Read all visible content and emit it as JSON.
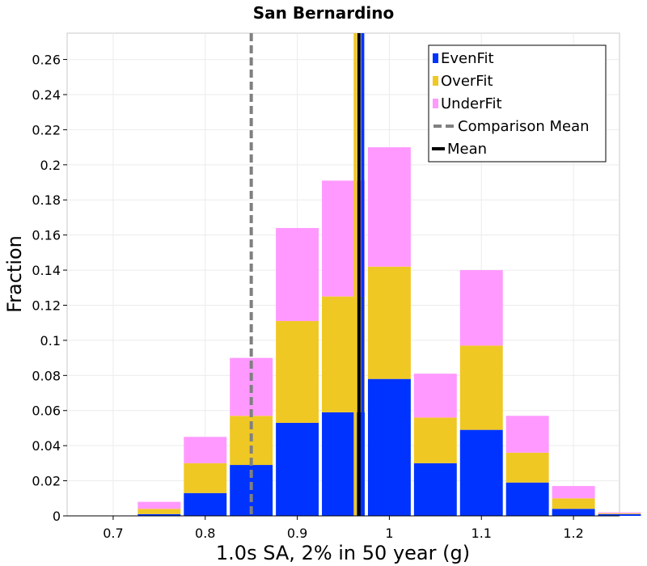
{
  "chart_data": {
    "type": "bar",
    "stacked": true,
    "title": "San Bernardino",
    "xlabel": "1.0s SA, 2% in 50 year (g)",
    "ylabel": "Fraction",
    "xlim": [
      0.65,
      1.25
    ],
    "ylim": [
      0,
      0.275
    ],
    "bin_width": 0.05,
    "grid": true,
    "legend_position": "top-right",
    "x_ticks": [
      0.7,
      0.8,
      0.9,
      1.0,
      1.1,
      1.2
    ],
    "x_tick_labels": [
      "0.7",
      "0.8",
      "0.9",
      "1",
      "1.1",
      "1.2"
    ],
    "y_ticks": [
      0,
      0.02,
      0.04,
      0.06,
      0.08,
      0.1,
      0.12,
      0.14,
      0.16,
      0.18,
      0.2,
      0.22,
      0.24,
      0.26
    ],
    "y_tick_labels": [
      "0",
      "0.02",
      "0.04",
      "0.06",
      "0.08",
      "0.1",
      "0.12",
      "0.14",
      "0.16",
      "0.18",
      "0.2",
      "0.22",
      "0.24",
      "0.26"
    ],
    "bin_centers": [
      0.7,
      0.75,
      0.8,
      0.85,
      0.9,
      0.95,
      1.0,
      1.05,
      1.1,
      1.15,
      1.2,
      1.25
    ],
    "series": [
      {
        "name": "EvenFit",
        "color": "#0033ff",
        "values": [
          0.0,
          0.001,
          0.013,
          0.029,
          0.053,
          0.059,
          0.078,
          0.03,
          0.049,
          0.019,
          0.004,
          0.001
        ]
      },
      {
        "name": "OverFit",
        "color": "#f0c824",
        "values": [
          0.0,
          0.003,
          0.017,
          0.028,
          0.058,
          0.066,
          0.064,
          0.026,
          0.048,
          0.017,
          0.006,
          0.0005
        ]
      },
      {
        "name": "UnderFit",
        "color": "#ff99ff",
        "values": [
          0.0,
          0.004,
          0.015,
          0.033,
          0.053,
          0.066,
          0.068,
          0.025,
          0.043,
          0.021,
          0.007,
          0.0005
        ]
      }
    ],
    "vertical_lines": [
      {
        "name": "Comparison Mean",
        "x": 0.85,
        "color": "#808080",
        "style": "dashed"
      },
      {
        "name": "Mean",
        "x": 0.967,
        "color": "#000000",
        "style": "solid"
      },
      {
        "name": "OverFit mean",
        "x": 0.963,
        "color": "#f0c824",
        "style": "solid"
      },
      {
        "name": "EvenFit mean",
        "x": 0.971,
        "color": "#0033ff",
        "style": "solid"
      }
    ],
    "legend": [
      {
        "label": "EvenFit",
        "color": "#0033ff",
        "kind": "box"
      },
      {
        "label": "OverFit",
        "color": "#f0c824",
        "kind": "box"
      },
      {
        "label": "UnderFit",
        "color": "#ff99ff",
        "kind": "box"
      },
      {
        "label": "Comparison Mean",
        "color": "#808080",
        "kind": "dashed"
      },
      {
        "label": "Mean",
        "color": "#000000",
        "kind": "line"
      }
    ]
  }
}
